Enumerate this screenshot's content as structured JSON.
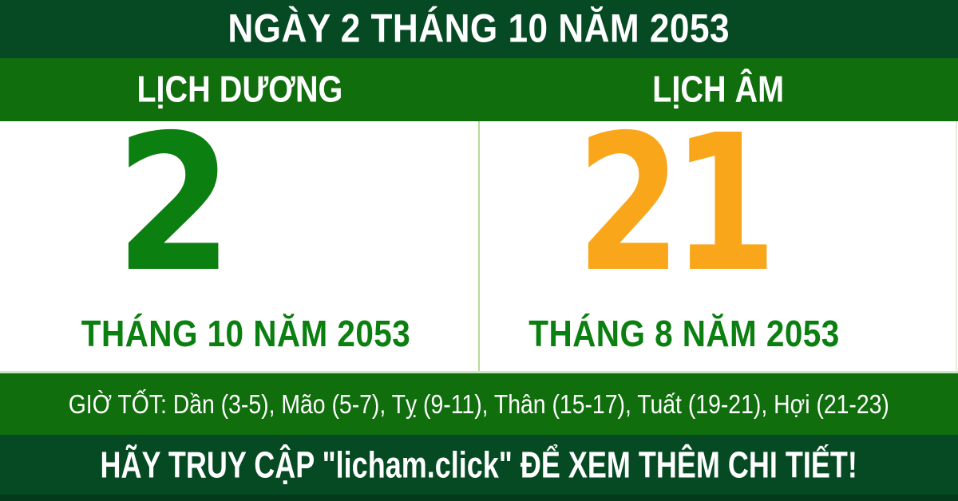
{
  "header": {
    "title": "NGÀY 2 THÁNG 10 NĂM 2053"
  },
  "tabs": {
    "solar_label": "LỊCH DƯƠNG",
    "lunar_label": "LỊCH ÂM"
  },
  "solar": {
    "day": "2",
    "month_year": "THÁNG 10 NĂM 2053"
  },
  "lunar": {
    "day": "21",
    "month_year": "THÁNG 8 NĂM 2053"
  },
  "good_hours": {
    "text": "GIỜ TỐT: Dần (3-5), Mão (5-7), Tỵ (9-11), Thân (15-17), Tuất (19-21), Hợi (21-23)"
  },
  "footer": {
    "cta": "HÃY TRUY CẬP \"licham.click\" ĐỂ XEM THÊM CHI TIẾT!",
    "site": "licham.click"
  },
  "colors": {
    "dark_green": "#054a23",
    "medium_green": "#106e0d",
    "solar_day_green": "#0b7f10",
    "lunar_day_orange": "#faa61a",
    "month_label_green": "#0b7f10",
    "divider_light_green": "#b7dc99",
    "panel_white": "#ffffff",
    "text_white": "#ffffff"
  }
}
